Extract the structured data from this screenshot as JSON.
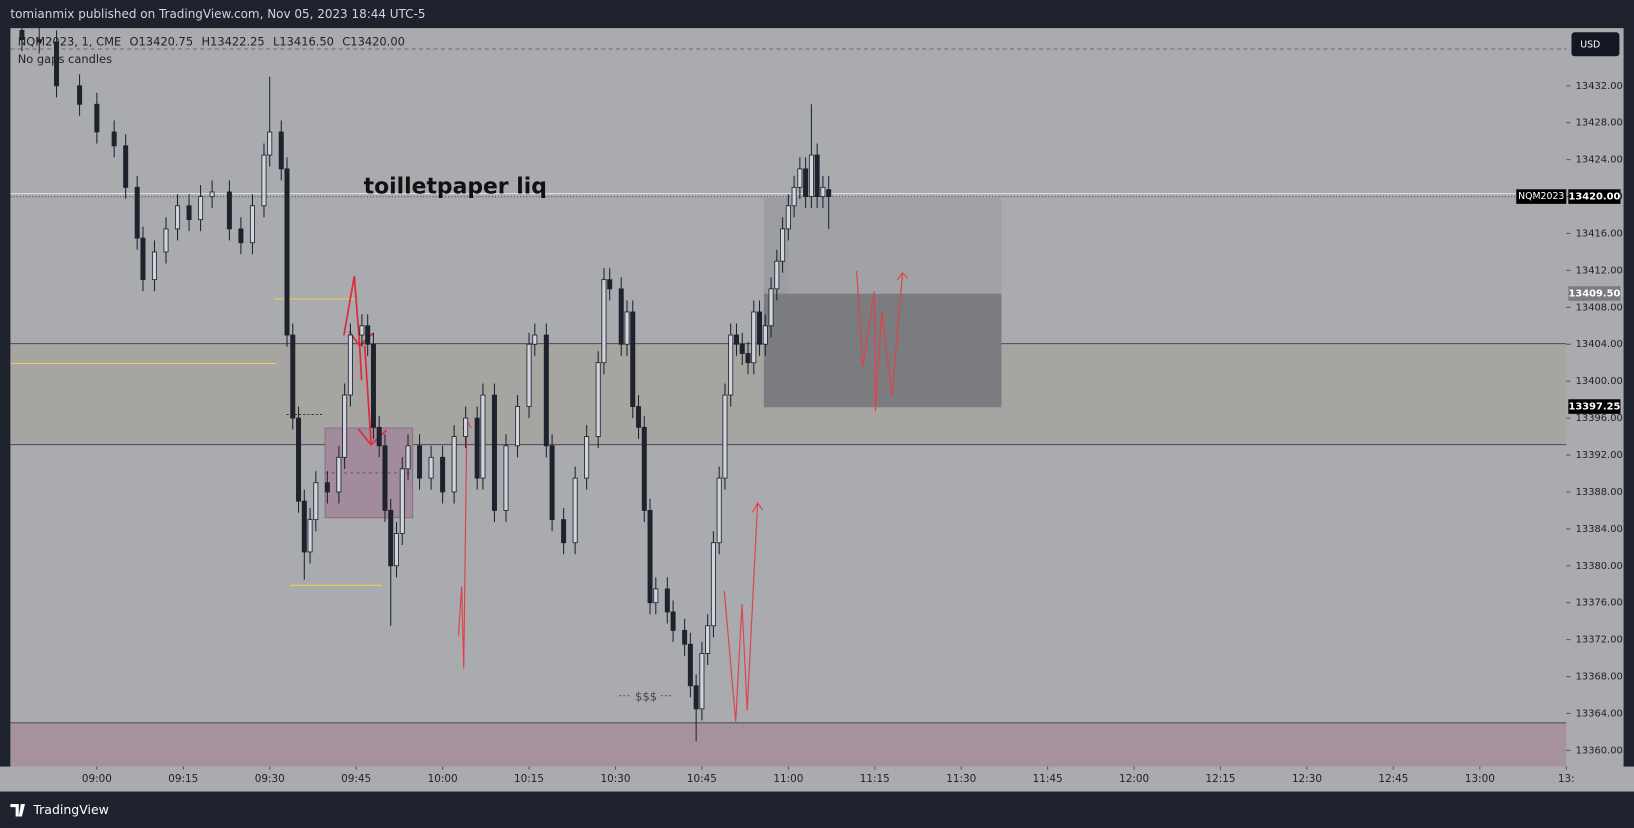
{
  "header": {
    "title": "tomianmix published on TradingView.com, Nov 05, 2023 18:44 UTC-5"
  },
  "footer": {
    "logo": "TradingView"
  },
  "toolbar": {
    "currency": "USD"
  },
  "chart_data": {
    "type": "candlestick",
    "symbol": "NQM2023, 1, CME",
    "ohlc_legend": [
      "O13420.75",
      "H13422.25",
      "L13416.50",
      "C13420.00"
    ],
    "subtitle": "No gaps candles",
    "x": [
      "08:47",
      "08:50",
      "08:53",
      "08:57",
      "09:00",
      "09:03",
      "09:05",
      "09:07",
      "09:08",
      "09:10",
      "09:12",
      "09:14",
      "09:16",
      "09:18",
      "09:20",
      "09:23",
      "09:25",
      "09:27",
      "09:29",
      "09:30",
      "09:32",
      "09:33",
      "09:34",
      "09:35",
      "09:36",
      "09:37",
      "09:38",
      "09:40",
      "09:42",
      "09:43",
      "09:44",
      "09:46",
      "09:47",
      "09:48",
      "09:49",
      "09:50",
      "09:51",
      "09:52",
      "09:53",
      "09:54",
      "09:56",
      "09:58",
      "10:00",
      "10:02",
      "10:04",
      "10:06",
      "10:07",
      "10:09",
      "10:11",
      "10:13",
      "10:15",
      "10:16",
      "10:18",
      "10:19",
      "10:21",
      "10:23",
      "10:25",
      "10:27",
      "10:28",
      "10:29",
      "10:31",
      "10:32",
      "10:33",
      "10:34",
      "10:35",
      "10:36",
      "10:37",
      "10:39",
      "10:40",
      "10:42",
      "10:43",
      "10:44",
      "10:45",
      "10:46",
      "10:47",
      "10:48",
      "10:49",
      "10:50",
      "10:51",
      "10:52",
      "10:53",
      "10:54",
      "10:55",
      "10:56",
      "10:57",
      "10:58",
      "10:59",
      "11:00",
      "11:01",
      "11:02",
      "11:03",
      "11:04",
      "11:05",
      "11:06",
      "11:07"
    ],
    "open": [
      13438,
      13437,
      13436.75,
      13432,
      13430,
      13427,
      13425.5,
      13421,
      13415.5,
      13411,
      13414,
      13416.5,
      13419,
      13417.5,
      13420,
      13420.5,
      13416.5,
      13415,
      13419,
      13424.5,
      13427,
      13423,
      13405,
      13396,
      13387,
      13381.5,
      13385,
      13389,
      13388,
      13391.75,
      13398.5,
      13405,
      13406,
      13404,
      13395,
      13393,
      13386,
      13380,
      13383.5,
      13390.5,
      13393,
      13389.5,
      13391.75,
      13388,
      13394,
      13396,
      13389.5,
      13398.5,
      13386,
      13393,
      13397.25,
      13404,
      13405,
      13393,
      13385,
      13382.5,
      13389.5,
      13394,
      13402,
      13411,
      13410,
      13404,
      13407.5,
      13397.25,
      13395,
      13386,
      13376,
      13377.5,
      13375,
      13373,
      13371.5,
      13367,
      13364.5,
      13370.5,
      13373.5,
      13382.5,
      13389.5,
      13398.5,
      13405,
      13404,
      13403,
      13402,
      13407.5,
      13404,
      13406,
      13410,
      13413,
      13416.5,
      13419,
      13421,
      13423,
      13420,
      13424.5,
      13420,
      13420.75
    ],
    "high": [
      13439.25,
      13438.25,
      13438,
      13433.25,
      13431.25,
      13428.25,
      13426.75,
      13422.25,
      13416.75,
      13415.25,
      13417.75,
      13420.25,
      13420.25,
      13421.25,
      13421.75,
      13421.75,
      13417.75,
      13420.25,
      13425.75,
      13433,
      13428.25,
      13424.25,
      13406.25,
      13397.25,
      13388.25,
      13386.25,
      13390.25,
      13390.25,
      13393,
      13399.75,
      13406.25,
      13407.25,
      13407.25,
      13405.25,
      13396.25,
      13394.25,
      13387.25,
      13384.75,
      13391.75,
      13394.25,
      13394.25,
      13393,
      13393,
      13395.25,
      13397.25,
      13397.25,
      13399.75,
      13399.75,
      13394.25,
      13398.5,
      13405.25,
      13406.25,
      13406.25,
      13394.25,
      13386.25,
      13390.75,
      13395.25,
      13403.25,
      13412.25,
      13412.25,
      13411.25,
      13408.75,
      13408.75,
      13398.5,
      13396.25,
      13387.25,
      13378.75,
      13378.75,
      13376.25,
      13374.25,
      13372.75,
      13368.25,
      13371.75,
      13374.75,
      13383.75,
      13390.75,
      13399.75,
      13406.25,
      13406.25,
      13405.25,
      13404.25,
      13408.75,
      13408.75,
      13407.25,
      13411.25,
      13414.25,
      13417.75,
      13420.25,
      13422.25,
      13424.25,
      13424.25,
      13430,
      13425.75,
      13422.25,
      13422.25
    ],
    "low": [
      13435.75,
      13435.5,
      13430.75,
      13428.75,
      13425.75,
      13424.25,
      13419.75,
      13414.25,
      13409.75,
      13409.75,
      13412.75,
      13415.25,
      13416.25,
      13416.25,
      13418.75,
      13415.25,
      13413.75,
      13413.75,
      13417.75,
      13423.25,
      13421.75,
      13403.75,
      13394.75,
      13385.75,
      13378.5,
      13380.25,
      13383.75,
      13386.75,
      13386.75,
      13390.5,
      13397.25,
      13403.75,
      13402.75,
      13393.75,
      13391.75,
      13384.75,
      13373.5,
      13378.75,
      13382.25,
      13389.25,
      13388.25,
      13388.25,
      13386.75,
      13386.75,
      13392.75,
      13388.25,
      13388.25,
      13384.75,
      13384.75,
      13391.75,
      13396,
      13402.75,
      13391.75,
      13383.75,
      13381.25,
      13381.25,
      13388.25,
      13392.75,
      13400.75,
      13408.75,
      13402.75,
      13402.75,
      13396,
      13393.75,
      13384.75,
      13374.75,
      13374.75,
      13373.75,
      13371.75,
      13370.25,
      13365.75,
      13361,
      13363.25,
      13369.25,
      13372.25,
      13381.25,
      13388.25,
      13397.25,
      13402.75,
      13401.75,
      13400.75,
      13400.75,
      13402.75,
      13402.75,
      13404.75,
      13408.75,
      13411.75,
      13415.25,
      13417.75,
      13419.75,
      13418.75,
      13418.75,
      13418.75,
      13418.75,
      13416.5
    ],
    "close": [
      13437,
      13436.75,
      13432,
      13430,
      13427,
      13425.5,
      13421,
      13415.5,
      13411,
      13414,
      13416.5,
      13419,
      13417.5,
      13420,
      13420.5,
      13416.5,
      13415,
      13419,
      13424.5,
      13427,
      13423,
      13405,
      13396,
      13387,
      13381.5,
      13385,
      13389,
      13388,
      13391.75,
      13398.5,
      13405,
      13406,
      13404,
      13395,
      13393,
      13386,
      13380,
      13383.5,
      13390.5,
      13393,
      13389.5,
      13391.75,
      13388,
      13394,
      13396,
      13389.5,
      13398.5,
      13386,
      13393,
      13397.25,
      13404,
      13405,
      13393,
      13385,
      13382.5,
      13389.5,
      13394,
      13402,
      13411,
      13410,
      13404,
      13407.5,
      13397.25,
      13395,
      13386,
      13376,
      13377.5,
      13375,
      13373,
      13371.5,
      13367,
      13364.5,
      13370.5,
      13373.5,
      13382.5,
      13389.5,
      13398.5,
      13405,
      13404,
      13403,
      13402,
      13407.5,
      13404,
      13406,
      13410,
      13413,
      13416.5,
      13419,
      13421,
      13423,
      13420,
      13424.5,
      13420,
      13421,
      13420
    ],
    "up_color": "#d1d4dc",
    "down_color": "#1e222d",
    "xlim": [
      "08:45",
      "13:15"
    ],
    "xticks": [
      "09:00",
      "09:15",
      "09:30",
      "09:45",
      "10:00",
      "10:15",
      "10:30",
      "10:45",
      "11:00",
      "11:15",
      "11:30",
      "11:45",
      "12:00",
      "12:15",
      "12:30",
      "12:45",
      "13:00",
      {
        "value": "13:15",
        "label": "13:"
      }
    ],
    "ylim": [
      13358.25,
      13438.25
    ],
    "yticks": [
      {
        "value": 13360,
        "label": "13360.00"
      },
      {
        "value": 13364,
        "label": "13364.00"
      },
      {
        "value": 13368,
        "label": "13368.00"
      },
      {
        "value": 13372,
        "label": "13372.00"
      },
      {
        "value": 13376,
        "label": "13376.00"
      },
      {
        "value": 13380,
        "label": "13380.00"
      },
      {
        "value": 13384,
        "label": "13384.00"
      },
      {
        "value": 13388,
        "label": "13388.00"
      },
      {
        "value": 13392,
        "label": "13392.00"
      },
      {
        "value": 13396,
        "label": "13396.00"
      },
      {
        "value": 13400,
        "label": "13400.00"
      },
      {
        "value": 13404,
        "label": "13404.00"
      },
      {
        "value": 13408,
        "label": "13408.00"
      },
      {
        "value": 13412,
        "label": "13412.00"
      },
      {
        "value": 13416,
        "label": "13416.00"
      },
      {
        "value": 13420,
        "label": "13420.00"
      },
      {
        "value": 13424,
        "label": "13424.00"
      },
      {
        "value": 13428,
        "label": "13428.00"
      },
      {
        "value": 13432,
        "label": "13432.00"
      }
    ],
    "annotations": [
      "toilletpaper liq",
      "$$$"
    ],
    "symbol_tag": "NQM2023",
    "price_labels": [
      {
        "value": 13420,
        "label": "13420.00"
      },
      {
        "value": 13409.5,
        "label": "13409.50"
      },
      {
        "value": 13397.25,
        "label": "13397.25"
      }
    ]
  }
}
